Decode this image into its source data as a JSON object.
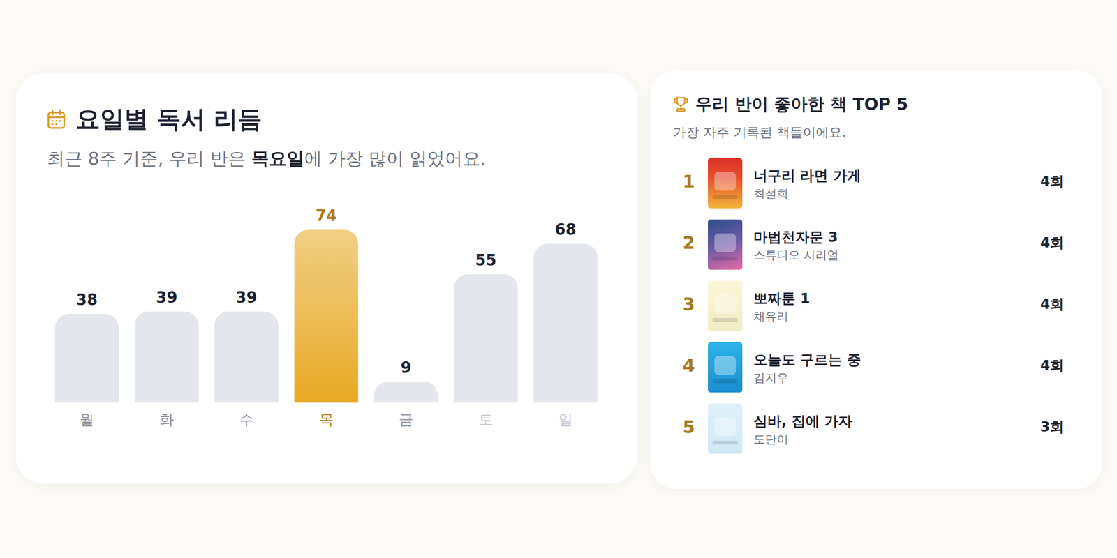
{
  "chart_data": {
    "type": "bar",
    "title": "요일별 독서 리듬",
    "subtitle": [
      "최근 8주 기준, 우리 반은 ",
      "목요일",
      "에 가장 많이 읽었어요."
    ],
    "categories": [
      "월",
      "화",
      "수",
      "목",
      "금",
      "토",
      "일"
    ],
    "values": [
      38,
      39,
      39,
      74,
      9,
      55,
      68
    ],
    "colors": [
      "#e3e6eb",
      "#e3e6eb",
      "#e3e6eb",
      "#e6a823",
      "#e3e6eb",
      "#e3e6eb",
      "#e3e6eb"
    ],
    "ylim": [
      0,
      80
    ],
    "yticks": [
      0,
      80
    ],
    "grid": false,
    "data_labels": true,
    "tick_labels": "x"
  },
  "top_books": {
    "title": "우리 반이 좋아한 책 TOP 5",
    "subtitle": "가장 자주 기록된 책들이에요.",
    "rows": [
      {
        "rank": "1",
        "title": "너구리 라면 가게",
        "author": "최설희",
        "count": "4회"
      },
      {
        "rank": "2",
        "title": "마법천자문 3",
        "author": "스튜디오 시리얼",
        "count": "4회"
      },
      {
        "rank": "3",
        "title": "뽀짜툰 1",
        "author": "채유리",
        "count": "4회"
      },
      {
        "rank": "4",
        "title": "오늘도 구르는 중",
        "author": "김지우",
        "count": "4회"
      },
      {
        "rank": "5",
        "title": "심바, 집에 가자",
        "author": "도단이",
        "count": "3회"
      }
    ]
  }
}
